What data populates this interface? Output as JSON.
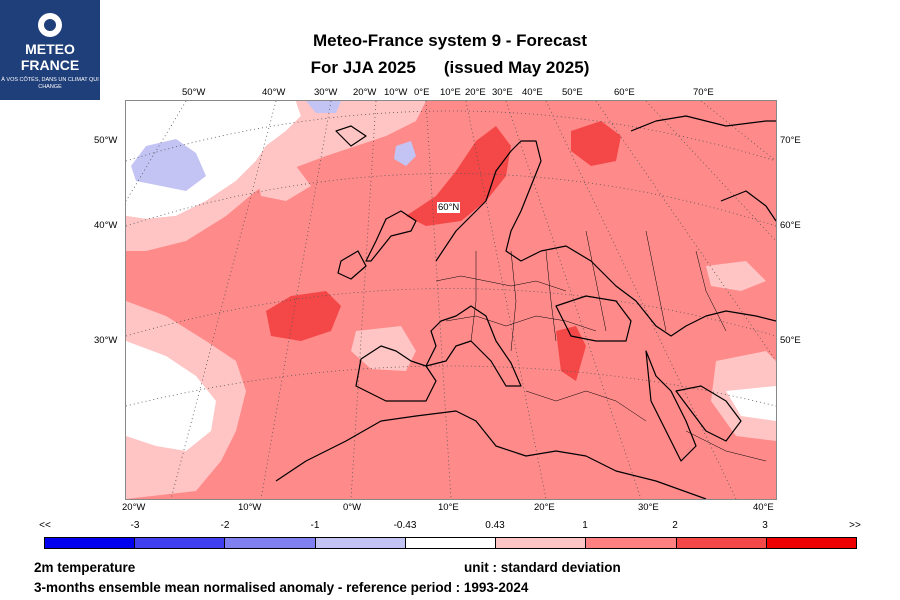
{
  "logo": {
    "line1": "METEO",
    "line2": "FRANCE",
    "tagline": "À VOS CÔTÉS, DANS UN CLIMAT QUI CHANGE"
  },
  "title": {
    "line1": "Meteo-France system 9  -  Forecast",
    "line2a": "For JJA 2025",
    "line2b": "(issued May 2025)"
  },
  "map": {
    "top_lon_labels": [
      "50°W",
      "40°W",
      "30°W",
      "20°W",
      "10°W",
      "0°E",
      "10°E",
      "20°E",
      "30°E",
      "40°E",
      "50°E",
      "60°E",
      "70°E"
    ],
    "bottom_lon_labels": [
      "20°W",
      "10°W",
      "0°W",
      "10°E",
      "20°E",
      "30°E",
      "40°E"
    ],
    "left_lat_labels": [
      "50°W",
      "40°W",
      "30°W"
    ],
    "right_lat_labels": [
      "70°E",
      "60°E",
      "50°E"
    ],
    "inner_label": "60°N"
  },
  "colorbar": {
    "labels": [
      "<<",
      "-3",
      "-2",
      "-1",
      "-0.43",
      "0.43",
      "1",
      "2",
      "3",
      ">>"
    ],
    "colors": [
      "#0000ee",
      "#4040f0",
      "#8080f0",
      "#c4c4f4",
      "#ffffff",
      "#ffc4c4",
      "#ff8080",
      "#f44848",
      "#ee0000"
    ]
  },
  "footer": {
    "variable": "2m temperature",
    "unit": "unit : standard deviation",
    "description": "3-months ensemble mean normalised anomaly - reference period : 1993-2024"
  }
}
